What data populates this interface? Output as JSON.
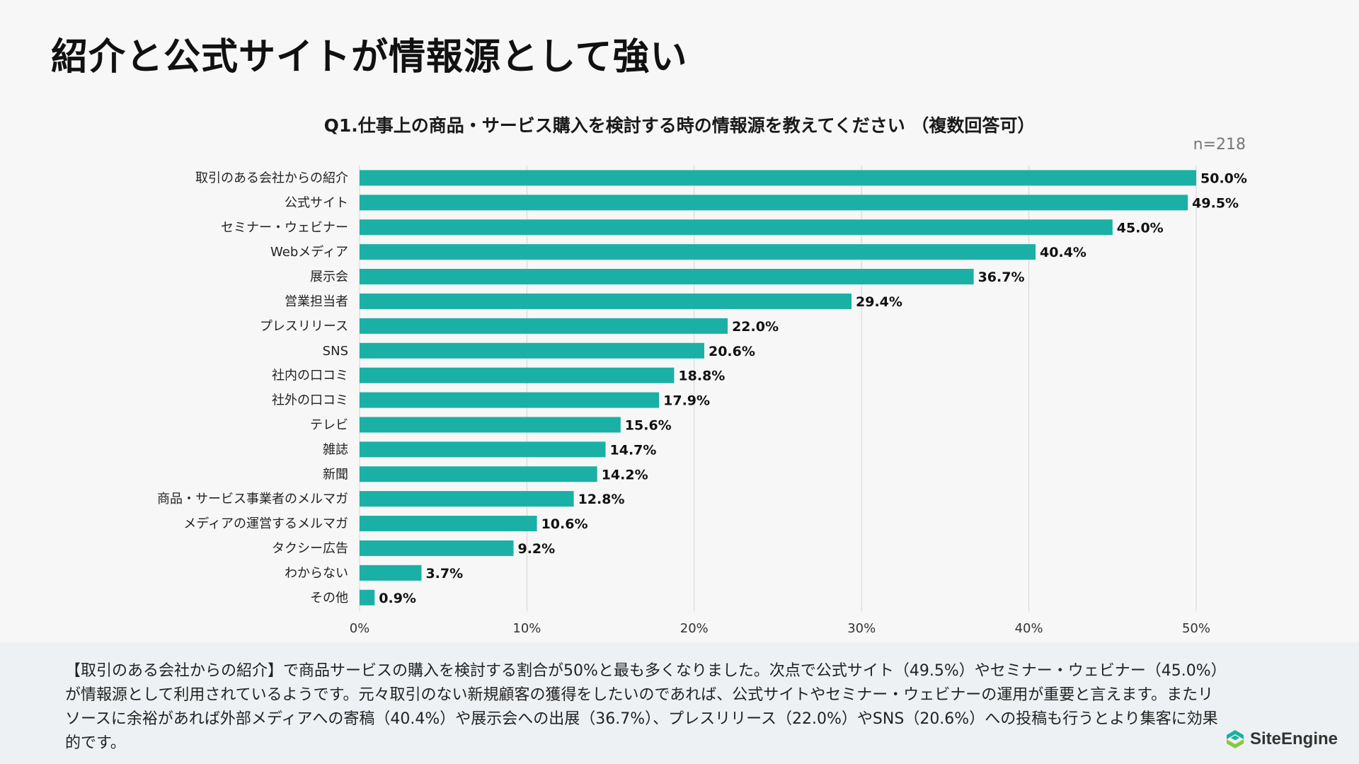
{
  "slide_title": "紹介と公式サイトが情報源として強い",
  "sample_size": "n=218",
  "colors": {
    "bar": "#1bb0a6",
    "grid": "#d4d4d4",
    "logo_accent": "#1bb0a6",
    "logo_secondary": "#8cc63f"
  },
  "chart_data": {
    "type": "bar",
    "orientation": "horizontal",
    "title": "Q1.仕事上の商品・サービス購入を検討する時の情報源を教えてください （複数回答可）",
    "categories": [
      "取引のある会社からの紹介",
      "公式サイト",
      "セミナー・ウェビナー",
      "Webメディア",
      "展示会",
      "営業担当者",
      "プレスリリース",
      "SNS",
      "社内の口コミ",
      "社外の口コミ",
      "テレビ",
      "雑誌",
      "新聞",
      "商品・サービス事業者のメルマガ",
      "メディアの運営するメルマガ",
      "タクシー広告",
      "わからない",
      "その他"
    ],
    "values": [
      50.0,
      49.5,
      45.0,
      40.4,
      36.7,
      29.4,
      22.0,
      20.6,
      18.8,
      17.9,
      15.6,
      14.7,
      14.2,
      12.8,
      10.6,
      9.2,
      3.7,
      0.9
    ],
    "value_labels": [
      "50.0%",
      "49.5%",
      "45.0%",
      "40.4%",
      "36.7%",
      "29.4%",
      "22.0%",
      "20.6%",
      "18.8%",
      "17.9%",
      "15.6%",
      "14.7%",
      "14.2%",
      "12.8%",
      "10.6%",
      "9.2%",
      "3.7%",
      "0.9%"
    ],
    "xlim": [
      0,
      50
    ],
    "xticks": [
      0,
      10,
      20,
      30,
      40,
      50
    ],
    "xtick_labels": [
      "0%",
      "10%",
      "20%",
      "30%",
      "40%",
      "50%"
    ],
    "grid": true,
    "xlabel": "",
    "ylabel": ""
  },
  "footer": {
    "summary": "【取引のある会社からの紹介】で商品サービスの購入を検討する割合が50%と最も多くなりました。次点で公式サイト（49.5%）やセミナー・ウェビナー（45.0%）が情報源として利用されているようです。元々取引のない新規顧客の獲得をしたいのであれば、公式サイトやセミナー・ウェビナーの運用が重要と言えます。またリソースに余裕があれば外部メディアへの寄稿（40.4%）や展示会への出展（36.7%）、プレスリリース（22.0%）やSNS（20.6%）への投稿も行うとより集客に効果的です。"
  },
  "logo": {
    "text": "SiteEngine",
    "icon": "site-engine-logo-icon"
  }
}
